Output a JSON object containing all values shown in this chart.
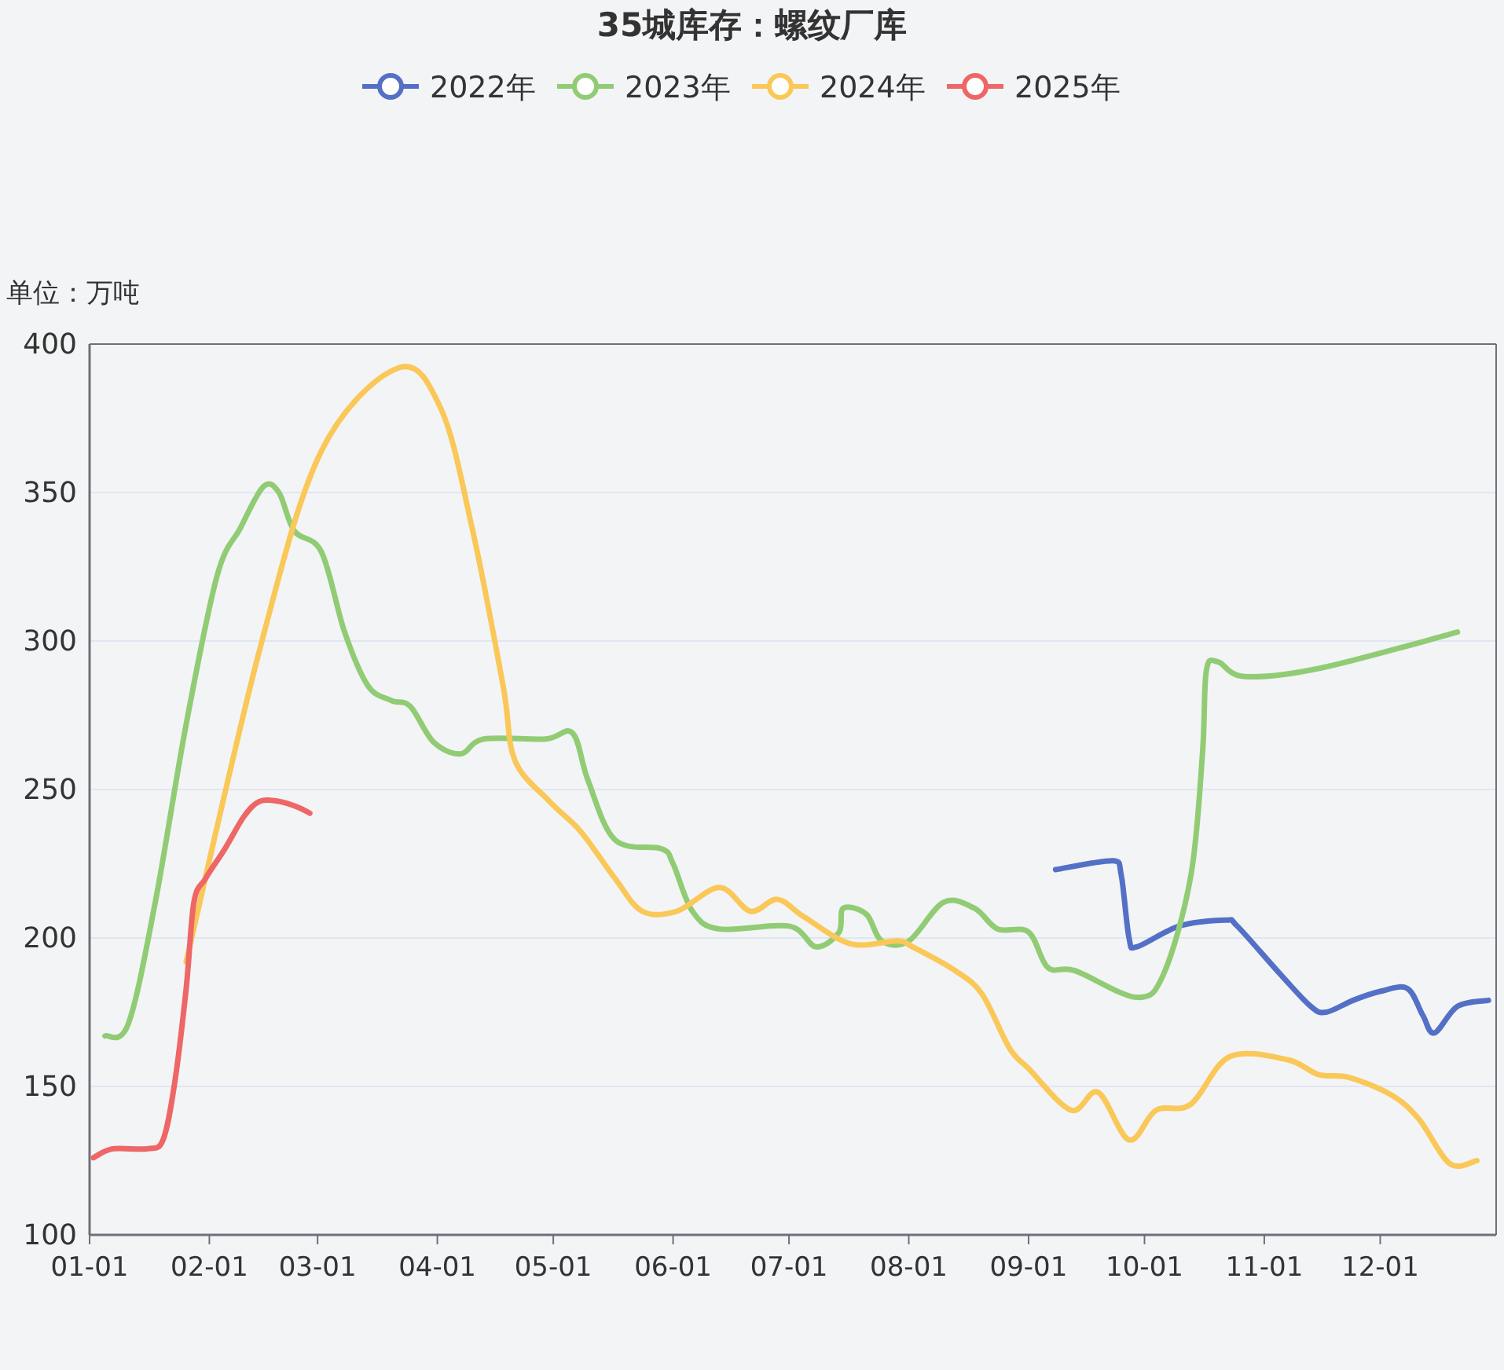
{
  "chart_data": {
    "type": "line",
    "title": "35城库存：螺纹厂库",
    "ylabel": "单位：万吨",
    "legend": "top",
    "grid": "y",
    "marker": "none",
    "line_style": "solid",
    "xlim": [
      "--01-01",
      "--12-31"
    ],
    "xticks": [
      {
        "value": "--01-01",
        "label": "01-01"
      },
      {
        "value": "--02-01",
        "label": "02-01"
      },
      {
        "value": "--03-01",
        "label": "03-01"
      },
      {
        "value": "--04-01",
        "label": "04-01"
      },
      {
        "value": "--05-01",
        "label": "05-01"
      },
      {
        "value": "--06-01",
        "label": "06-01"
      },
      {
        "value": "--07-01",
        "label": "07-01"
      },
      {
        "value": "--08-01",
        "label": "08-01"
      },
      {
        "value": "--09-01",
        "label": "09-01"
      },
      {
        "value": "--10-01",
        "label": "10-01"
      },
      {
        "value": "--11-01",
        "label": "11-01"
      },
      {
        "value": "--12-01",
        "label": "12-01"
      }
    ],
    "ylim": [
      100,
      400
    ],
    "yticks": [
      100,
      150,
      200,
      250,
      300,
      350,
      400
    ],
    "series": [
      {
        "name": "2022年",
        "color": "#5470c6",
        "x": [
          "--09-08",
          "--09-23",
          "--09-25",
          "--09-27",
          "--09-29",
          "--10-10",
          "--10-22",
          "--10-25",
          "--11-05",
          "--11-13",
          "--11-17",
          "--11-24",
          "--12-01",
          "--12-08",
          "--12-12",
          "--12-15",
          "--12-21",
          "--12-29"
        ],
        "values": [
          223,
          226,
          221,
          200,
          197,
          204,
          206,
          204,
          188,
          177,
          175,
          179,
          182,
          183,
          174,
          168,
          177,
          179
        ]
      },
      {
        "name": "2023年",
        "color": "#91cc75",
        "x": [
          "--01-05",
          "--01-11",
          "--01-18",
          "--01-26",
          "--02-03",
          "--02-09",
          "--02-15",
          "--02-19",
          "--02-23",
          "--03-02",
          "--03-08",
          "--03-14",
          "--03-20",
          "--03-25",
          "--03-31",
          "--04-07",
          "--04-13",
          "--04-29",
          "--05-06",
          "--05-10",
          "--05-17",
          "--05-29",
          "--06-01",
          "--06-06",
          "--06-13",
          "--07-01",
          "--07-08",
          "--07-14",
          "--07-15",
          "--07-21",
          "--07-25",
          "--08-01",
          "--08-10",
          "--08-18",
          "--08-24",
          "--09-01",
          "--09-06",
          "--09-13",
          "--09-29",
          "--10-06",
          "--10-13",
          "--10-16",
          "--10-17",
          "--10-20",
          "--10-27",
          "--11-16",
          "--12-21"
        ],
        "values": [
          167,
          171,
          212,
          272,
          322,
          338,
          352,
          350,
          337,
          330,
          303,
          285,
          280,
          278,
          266,
          262,
          267,
          267,
          269,
          253,
          233,
          230,
          225,
          209,
          203,
          204,
          197,
          202,
          210,
          208,
          199,
          199,
          212,
          210,
          203,
          202,
          190,
          189,
          180,
          188,
          221,
          262,
          290,
          293,
          288,
          291,
          303
        ]
      },
      {
        "name": "2024年",
        "color": "#fac858",
        "x": [
          "--01-26",
          "--02-14",
          "--03-02",
          "--03-22",
          "--04-02",
          "--04-10",
          "--04-18",
          "--04-21",
          "--04-30",
          "--05-08",
          "--05-17",
          "--05-24",
          "--06-02",
          "--06-13",
          "--06-21",
          "--06-28",
          "--07-05",
          "--07-17",
          "--07-29",
          "--08-02",
          "--08-13",
          "--08-20",
          "--08-27",
          "--09-01",
          "--09-12",
          "--09-19",
          "--09-27",
          "--10-04",
          "--10-13",
          "--10-23",
          "--11-07",
          "--11-15",
          "--11-23",
          "--12-04",
          "--12-11",
          "--12-19",
          "--12-26"
        ],
        "values": [
          192,
          297,
          364,
          392,
          378,
          338,
          285,
          260,
          246,
          236,
          220,
          209,
          209,
          217,
          209,
          213,
          207,
          198,
          199,
          197,
          189,
          181,
          163,
          156,
          142,
          148,
          132,
          142,
          144,
          160,
          159,
          154,
          153,
          147,
          139,
          124,
          125
        ]
      },
      {
        "name": "2025年",
        "color": "#ee6666",
        "x": [
          "--01-02",
          "--01-07",
          "--01-16",
          "--01-20",
          "--01-23",
          "--01-26",
          "--01-28",
          "--01-31",
          "--02-05",
          "--02-10",
          "--02-14",
          "--02-19",
          "--02-24",
          "--02-27"
        ],
        "values": [
          126,
          129,
          129,
          132,
          151,
          183,
          212,
          220,
          230,
          241,
          246,
          246,
          244,
          242
        ]
      }
    ]
  }
}
